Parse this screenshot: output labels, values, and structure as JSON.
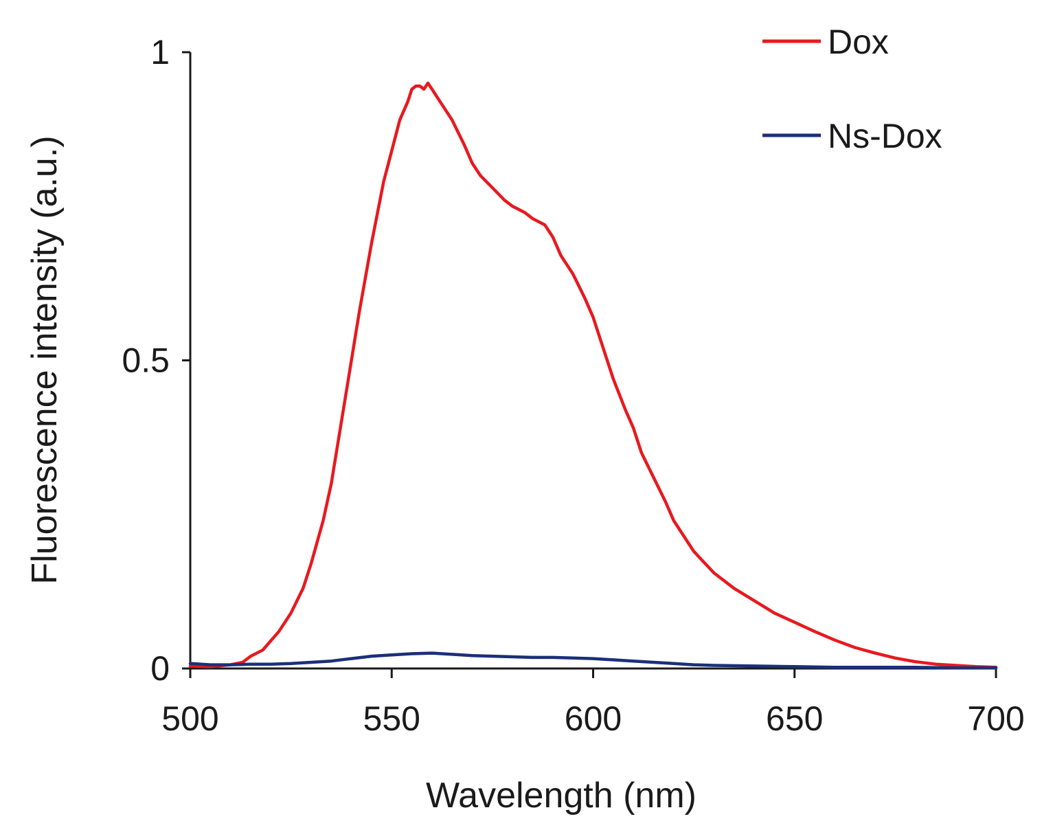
{
  "chart_data": {
    "type": "line",
    "title": "",
    "xlabel": "Wavelength (nm)",
    "ylabel": "Fluorescence intensity (a.u.)",
    "xlim": [
      500,
      700
    ],
    "ylim": [
      0,
      1
    ],
    "xticks": [
      500,
      550,
      600,
      650,
      700
    ],
    "xtick_labels": [
      "500",
      "550",
      "600",
      "650",
      "700"
    ],
    "yticks": [
      0,
      0.5,
      1
    ],
    "ytick_labels": [
      "0",
      "0.5",
      "1"
    ],
    "grid": false,
    "legend": "top-right",
    "series": [
      {
        "name": "Dox",
        "color": "#e8191f",
        "x": [
          500,
          505,
          510,
          513,
          515,
          518,
          520,
          522,
          525,
          528,
          530,
          533,
          535,
          538,
          540,
          542,
          545,
          548,
          550,
          552,
          554,
          555,
          556,
          557,
          558,
          559,
          560,
          562,
          565,
          568,
          570,
          572,
          575,
          578,
          580,
          583,
          585,
          588,
          590,
          592,
          595,
          598,
          600,
          602,
          605,
          608,
          610,
          612,
          615,
          618,
          620,
          625,
          630,
          635,
          640,
          645,
          650,
          655,
          660,
          665,
          670,
          675,
          680,
          685,
          690,
          695,
          700
        ],
        "values": [
          0.004,
          0.003,
          0.006,
          0.01,
          0.02,
          0.03,
          0.045,
          0.06,
          0.09,
          0.13,
          0.17,
          0.24,
          0.3,
          0.42,
          0.5,
          0.58,
          0.69,
          0.79,
          0.84,
          0.89,
          0.92,
          0.94,
          0.945,
          0.945,
          0.94,
          0.95,
          0.94,
          0.92,
          0.89,
          0.85,
          0.82,
          0.8,
          0.78,
          0.76,
          0.75,
          0.74,
          0.73,
          0.72,
          0.7,
          0.67,
          0.64,
          0.6,
          0.57,
          0.53,
          0.47,
          0.42,
          0.39,
          0.35,
          0.31,
          0.27,
          0.24,
          0.19,
          0.155,
          0.13,
          0.11,
          0.09,
          0.075,
          0.06,
          0.046,
          0.034,
          0.025,
          0.017,
          0.011,
          0.007,
          0.005,
          0.003,
          0.002
        ]
      },
      {
        "name": "Ns-Dox",
        "color": "#1b2f7a",
        "x": [
          500,
          505,
          510,
          515,
          520,
          525,
          530,
          535,
          540,
          545,
          550,
          555,
          560,
          565,
          570,
          575,
          580,
          585,
          590,
          595,
          600,
          605,
          610,
          615,
          620,
          625,
          630,
          640,
          650,
          660,
          670,
          680,
          690,
          700
        ],
        "values": [
          0.008,
          0.006,
          0.006,
          0.007,
          0.007,
          0.008,
          0.01,
          0.012,
          0.016,
          0.02,
          0.022,
          0.024,
          0.025,
          0.023,
          0.021,
          0.02,
          0.019,
          0.018,
          0.018,
          0.017,
          0.016,
          0.014,
          0.012,
          0.01,
          0.008,
          0.006,
          0.005,
          0.004,
          0.003,
          0.002,
          0.002,
          0.002,
          0.001,
          0.001
        ]
      }
    ]
  }
}
